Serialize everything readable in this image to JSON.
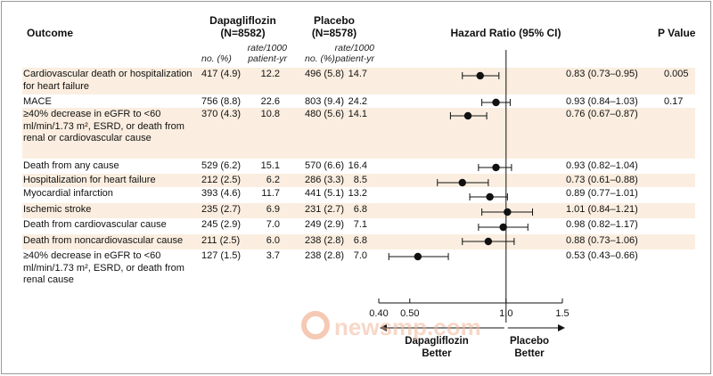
{
  "chart_data": {
    "type": "forest",
    "columns": {
      "outcome": "Outcome",
      "group1": "Dapagliflozin",
      "group1_n": "(N=8582)",
      "group2": "Placebo",
      "group2_n": "(N=8578)",
      "hr": "Hazard Ratio (95% CI)",
      "p": "P Value",
      "no_pct": "no. (%)",
      "rate": "rate/1000",
      "rate2": "patient-yr"
    },
    "rows": [
      {
        "label": "Cardiovascular death or hospitalization for heart failure",
        "d_n": "417 (4.9)",
        "d_rate": "12.2",
        "p_n": "496 (5.8)",
        "p_rate": "14.7",
        "hr": 0.83,
        "lo": 0.73,
        "hi": 0.95,
        "hr_text": "0.83 (0.73–0.95)",
        "pval": "0.005",
        "shade": true
      },
      {
        "label": "MACE",
        "d_n": "756 (8.8)",
        "d_rate": "22.6",
        "p_n": "803 (9.4)",
        "p_rate": "24.2",
        "hr": 0.93,
        "lo": 0.84,
        "hi": 1.03,
        "hr_text": "0.93 (0.84–1.03)",
        "pval": "0.17",
        "shade": false
      },
      {
        "label": "≥40% decrease in eGFR to <60 ml/min/1.73 m², ESRD, or death from renal or cardiovascular cause",
        "d_n": "370 (4.3)",
        "d_rate": "10.8",
        "p_n": "480 (5.6)",
        "p_rate": "14.1",
        "hr": 0.76,
        "lo": 0.67,
        "hi": 0.87,
        "hr_text": "0.76 (0.67–0.87)",
        "pval": "",
        "shade": true
      },
      {
        "label": "Death from any cause",
        "d_n": "529 (6.2)",
        "d_rate": "15.1",
        "p_n": "570 (6.6)",
        "p_rate": "16.4",
        "hr": 0.93,
        "lo": 0.82,
        "hi": 1.04,
        "hr_text": "0.93 (0.82–1.04)",
        "pval": "",
        "shade": false
      },
      {
        "label": "Hospitalization for heart failure",
        "d_n": "212 (2.5)",
        "d_rate": "6.2",
        "p_n": "286 (3.3)",
        "p_rate": "8.5",
        "hr": 0.73,
        "lo": 0.61,
        "hi": 0.88,
        "hr_text": "0.73 (0.61–0.88)",
        "pval": "",
        "shade": true
      },
      {
        "label": "Myocardial infarction",
        "d_n": "393 (4.6)",
        "d_rate": "11.7",
        "p_n": "441 (5.1)",
        "p_rate": "13.2",
        "hr": 0.89,
        "lo": 0.77,
        "hi": 1.01,
        "hr_text": "0.89 (0.77–1.01)",
        "pval": "",
        "shade": false
      },
      {
        "label": "Ischemic stroke",
        "d_n": "235 (2.7)",
        "d_rate": "6.9",
        "p_n": "231 (2.7)",
        "p_rate": "6.8",
        "hr": 1.01,
        "lo": 0.84,
        "hi": 1.21,
        "hr_text": "1.01 (0.84–1.21)",
        "pval": "",
        "shade": true
      },
      {
        "label": "Death from cardiovascular cause",
        "d_n": "245 (2.9)",
        "d_rate": "7.0",
        "p_n": "249 (2.9)",
        "p_rate": "7.1",
        "hr": 0.98,
        "lo": 0.82,
        "hi": 1.17,
        "hr_text": "0.98 (0.82–1.17)",
        "pval": "",
        "shade": false
      },
      {
        "label": "Death from noncardiovascular cause",
        "d_n": "211 (2.5)",
        "d_rate": "6.0",
        "p_n": "238 (2.8)",
        "p_rate": "6.8",
        "hr": 0.88,
        "lo": 0.73,
        "hi": 1.06,
        "hr_text": "0.88 (0.73–1.06)",
        "pval": "",
        "shade": true
      },
      {
        "label": "≥40% decrease in eGFR to <60 ml/min/1.73 m², ESRD, or death from renal cause",
        "d_n": "127 (1.5)",
        "d_rate": "3.7",
        "p_n": "238 (2.8)",
        "p_rate": "7.0",
        "hr": 0.53,
        "lo": 0.43,
        "hi": 0.66,
        "hr_text": "0.53 (0.43–0.66)",
        "pval": "",
        "shade": false
      }
    ],
    "x_axis": {
      "scale": "log",
      "ticks": [
        0.4,
        0.5,
        1.0,
        1.5
      ],
      "tick_labels": [
        "0.40",
        "0.50",
        "1.0",
        "1.5"
      ],
      "xlim": [
        0.4,
        1.5
      ]
    },
    "direction_left": "Dapagliflozin\nBetter",
    "direction_right": "Placebo\nBetter",
    "watermark": "newsmp.com",
    "colors": {
      "shade": "#fbeee0",
      "ink": "#111111",
      "watermark": "#f2b79a"
    }
  }
}
